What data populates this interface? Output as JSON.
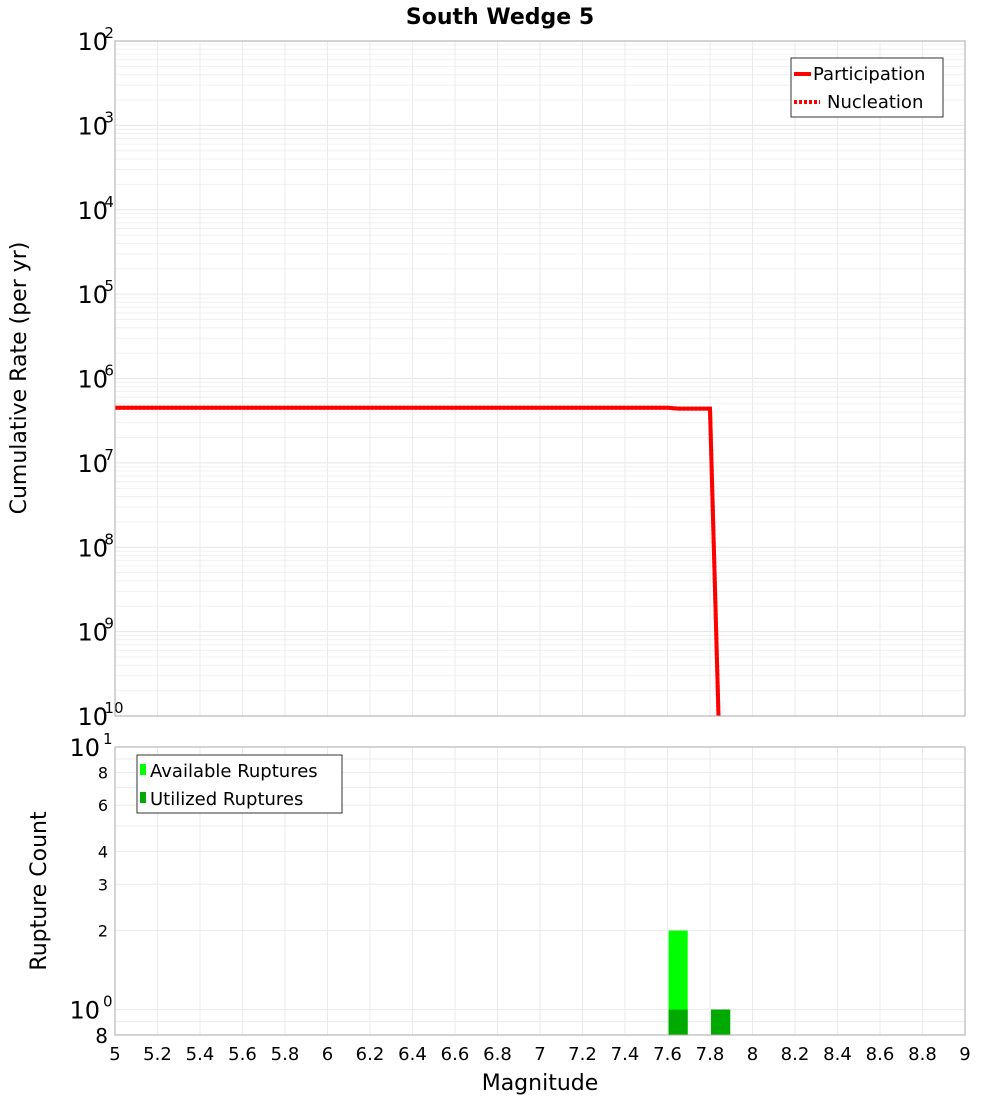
{
  "title": "South Wedge 5",
  "chart_data": [
    {
      "type": "line",
      "title": "South Wedge 5",
      "xlabel": "",
      "ylabel": "Cumulative Rate (per yr)",
      "yscale": "log",
      "ylim": [
        1e-10,
        0.01
      ],
      "xlim": [
        5,
        9
      ],
      "grid": true,
      "legend_position": "top-right",
      "y_ticks": [
        "10^-2",
        "10^-3",
        "10^-4",
        "10^-5",
        "10^-6",
        "10^-7",
        "10^-8",
        "10^-9",
        "10^-10"
      ],
      "series": [
        {
          "name": "Participation",
          "color": "#ff0000",
          "style": "solid",
          "x": [
            5.0,
            7.6,
            7.65,
            7.8,
            7.84
          ],
          "y": [
            4.5e-07,
            4.5e-07,
            4.4e-07,
            4.4e-07,
            1e-10
          ]
        },
        {
          "name": "Nucleation",
          "color": "#ff0000",
          "style": "dotted",
          "x": [
            5.0,
            7.6,
            7.65,
            7.8,
            7.84
          ],
          "y": [
            4.5e-07,
            4.5e-07,
            4.4e-07,
            4.4e-07,
            1e-10
          ]
        }
      ]
    },
    {
      "type": "bar",
      "xlabel": "Magnitude",
      "ylabel": "Rupture Count",
      "yscale": "log",
      "ylim": [
        0.8,
        10
      ],
      "xlim": [
        5,
        9
      ],
      "grid": true,
      "legend_position": "top-left",
      "x_ticks": [
        "5",
        "5.2",
        "5.4",
        "5.6",
        "5.8",
        "6",
        "6.2",
        "6.4",
        "6.6",
        "6.8",
        "7",
        "7.2",
        "7.4",
        "7.6",
        "7.8",
        "8",
        "8.2",
        "8.4",
        "8.6",
        "8.8",
        "9"
      ],
      "y_ticks": [
        "8",
        "10^0",
        "2",
        "3",
        "4",
        "6",
        "8",
        "10^1"
      ],
      "categories": [
        7.65,
        7.85
      ],
      "series": [
        {
          "name": "Available Ruptures",
          "color": "#00ff00",
          "values": [
            2,
            1
          ]
        },
        {
          "name": "Utilized Ruptures",
          "color": "#00aa00",
          "values": [
            1,
            1
          ]
        }
      ]
    }
  ],
  "top": {
    "ylabel": "Cumulative Rate (per yr)",
    "legend": [
      {
        "label": "Participation"
      },
      {
        "label": "Nucleation"
      }
    ]
  },
  "bottom": {
    "ylabel": "Rupture Count",
    "xlabel": "Magnitude",
    "legend": [
      {
        "label": "Available Ruptures"
      },
      {
        "label": "Utilized Ruptures"
      }
    ]
  }
}
